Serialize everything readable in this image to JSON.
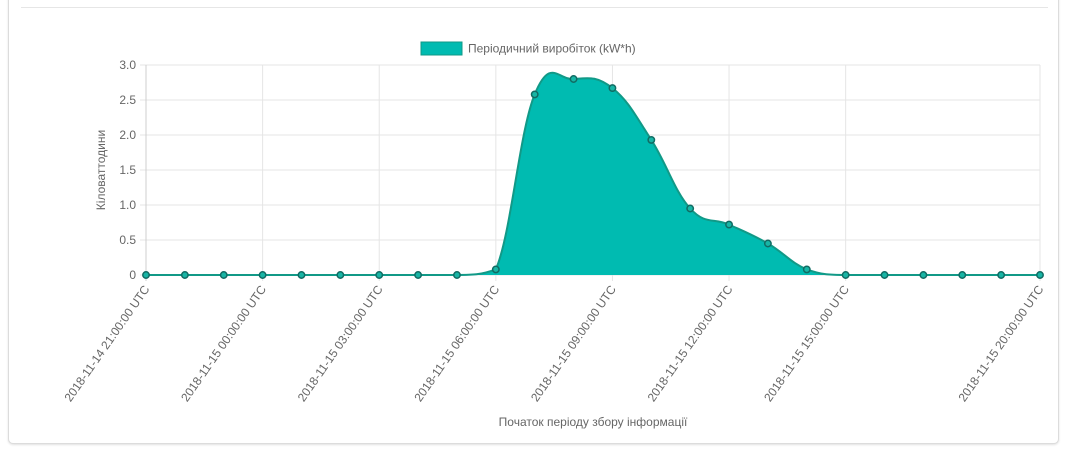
{
  "chart_data": {
    "type": "area",
    "legend": {
      "label": "Періодичний виробіток (kW*h)",
      "position": "top-center"
    },
    "ylabel": "Кіловаттодини",
    "xlabel": "Початок періоду збору інформації",
    "ylim": [
      0,
      3.0
    ],
    "y_ticks": [
      "0",
      "0.5",
      "1.0",
      "1.5",
      "2.0",
      "2.5",
      "3.0"
    ],
    "x_tick_labels": [
      {
        "label": "2018-11-14 21:00:00 UTC",
        "index": 0
      },
      {
        "label": "2018-11-15 00:00:00 UTC",
        "index": 3
      },
      {
        "label": "2018-11-15 03:00:00 UTC",
        "index": 6
      },
      {
        "label": "2018-11-15 06:00:00 UTC",
        "index": 9
      },
      {
        "label": "2018-11-15 09:00:00 UTC",
        "index": 12
      },
      {
        "label": "2018-11-15 12:00:00 UTC",
        "index": 15
      },
      {
        "label": "2018-11-15 15:00:00 UTC",
        "index": 18
      },
      {
        "label": "2018-11-15 20:00:00 UTC",
        "index": 23
      }
    ],
    "x": [
      "2018-11-14 21:00:00 UTC",
      "2018-11-14 22:00:00 UTC",
      "2018-11-14 23:00:00 UTC",
      "2018-11-15 00:00:00 UTC",
      "2018-11-15 01:00:00 UTC",
      "2018-11-15 02:00:00 UTC",
      "2018-11-15 03:00:00 UTC",
      "2018-11-15 04:00:00 UTC",
      "2018-11-15 05:00:00 UTC",
      "2018-11-15 06:00:00 UTC",
      "2018-11-15 07:00:00 UTC",
      "2018-11-15 08:00:00 UTC",
      "2018-11-15 09:00:00 UTC",
      "2018-11-15 10:00:00 UTC",
      "2018-11-15 11:00:00 UTC",
      "2018-11-15 12:00:00 UTC",
      "2018-11-15 13:00:00 UTC",
      "2018-11-15 14:00:00 UTC",
      "2018-11-15 15:00:00 UTC",
      "2018-11-15 16:00:00 UTC",
      "2018-11-15 17:00:00 UTC",
      "2018-11-15 18:00:00 UTC",
      "2018-11-15 19:00:00 UTC",
      "2018-11-15 20:00:00 UTC"
    ],
    "series": [
      {
        "name": "Періодичний виробіток (kW*h)",
        "values": [
          0,
          0,
          0,
          0,
          0,
          0,
          0,
          0,
          0,
          0.08,
          2.58,
          2.8,
          2.67,
          1.93,
          0.95,
          0.72,
          0.45,
          0.08,
          0,
          0,
          0,
          0,
          0,
          0
        ]
      }
    ],
    "grid": true,
    "colors": {
      "fill": "#00bbb1",
      "line": "#119987",
      "point_fill": "#18b5a5",
      "point_stroke": "#116b63",
      "grid": "#e5e5e5"
    }
  }
}
